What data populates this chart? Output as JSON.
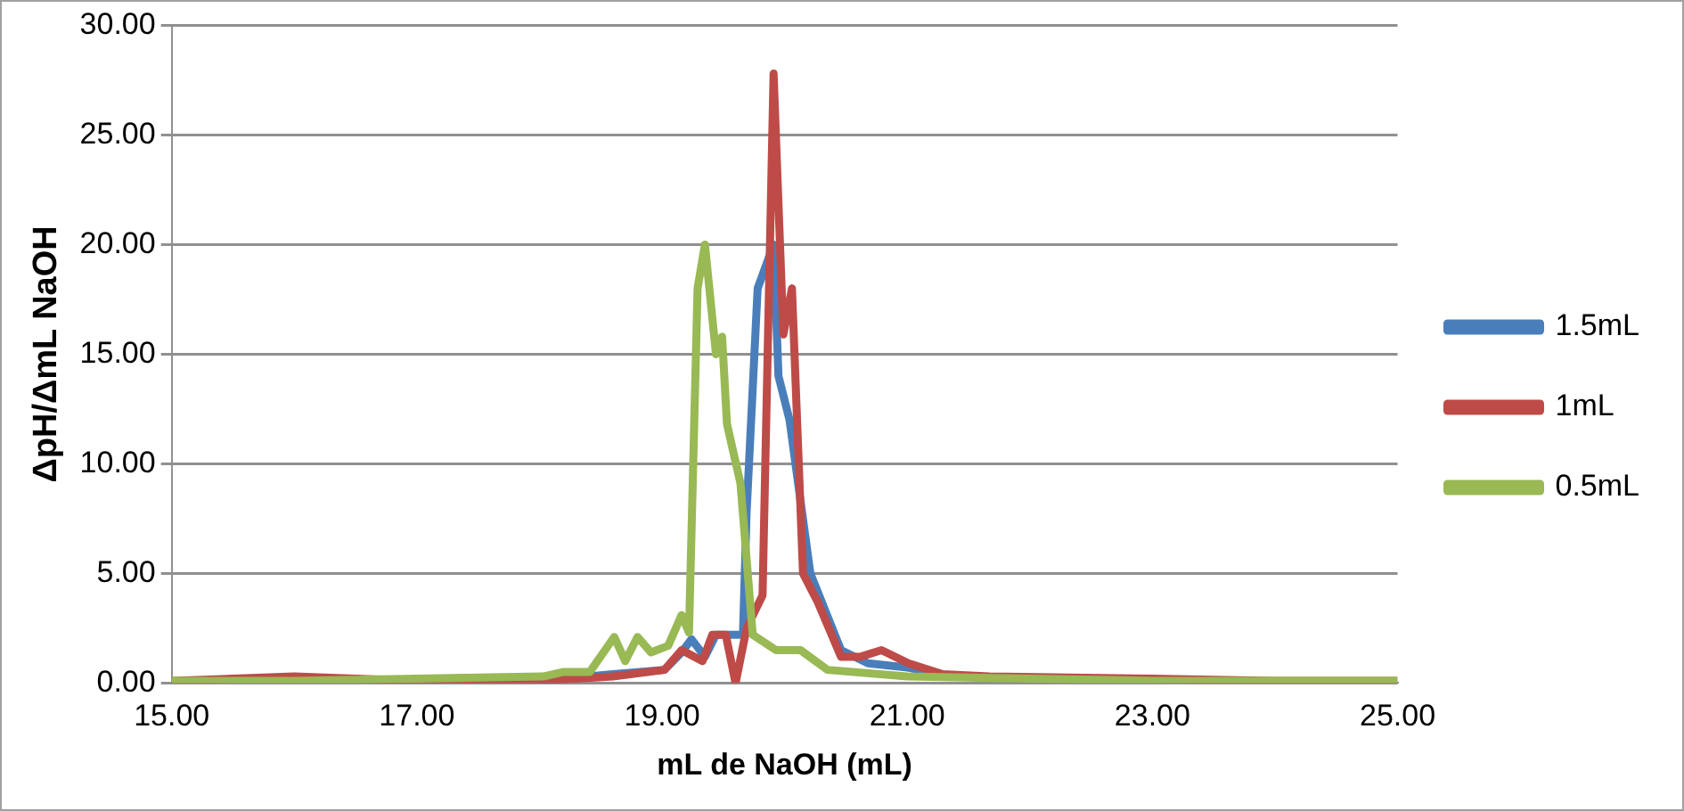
{
  "chart_data": {
    "type": "line",
    "xlabel": "mL de NaOH (mL)",
    "ylabel": "ΔpH/ΔmL NaOH",
    "xlim": [
      15,
      25
    ],
    "xticks": [
      {
        "value": 15,
        "label": "15.00"
      },
      {
        "value": 17,
        "label": "17.00"
      },
      {
        "value": 19,
        "label": "19.00"
      },
      {
        "value": 21,
        "label": "21.00"
      },
      {
        "value": 23,
        "label": "23.00"
      },
      {
        "value": 25,
        "label": "25.00"
      }
    ],
    "ylim": [
      0,
      30
    ],
    "yticks": [
      {
        "value": 0,
        "label": "0.00"
      },
      {
        "value": 5,
        "label": "5.00"
      },
      {
        "value": 10,
        "label": "10.00"
      },
      {
        "value": 15,
        "label": "15.00"
      },
      {
        "value": 20,
        "label": "20.00"
      },
      {
        "value": 25,
        "label": "25.00"
      },
      {
        "value": 30,
        "label": "30.00"
      }
    ],
    "grid": "y",
    "legend": "right",
    "marker": "none",
    "line_style": "solid",
    "series": [
      {
        "name": "1.5mL",
        "color": "#4a7ebb",
        "x": [
          18,
          18.6,
          19.02,
          19.16,
          19.24,
          19.35,
          19.44,
          19.57,
          19.66,
          19.69,
          19.78,
          19.91,
          19.95,
          20.04,
          20.21,
          20.46,
          20.68,
          21.01,
          21.34,
          22
        ],
        "values": [
          0.1,
          0.4,
          0.6,
          1.4,
          2.0,
          1.2,
          2.2,
          2.2,
          2.2,
          7.8,
          18,
          20,
          14,
          12,
          5,
          1.5,
          0.9,
          0.7,
          0.3,
          0.2
        ]
      },
      {
        "name": "1mL",
        "color": "#be4b48",
        "x": [
          15,
          16,
          17,
          18,
          18.6,
          19.02,
          19.16,
          19.33,
          19.41,
          19.52,
          19.6,
          19.69,
          19.82,
          19.91,
          19.99,
          20.06,
          20.15,
          20.27,
          20.46,
          20.62,
          20.79,
          21.01,
          21.29,
          21.67,
          23,
          24,
          25
        ],
        "values": [
          0.1,
          0.3,
          0.1,
          0.1,
          0.3,
          0.6,
          1.5,
          1.0,
          2.2,
          2.2,
          0,
          2.5,
          4.0,
          27.8,
          15.9,
          18,
          5.0,
          3.7,
          1.2,
          1.2,
          1.5,
          0.9,
          0.4,
          0.3,
          0.2,
          0.1,
          0.1
        ]
      },
      {
        "name": "0.5mL",
        "color": "#98b954",
        "x": [
          15,
          16,
          17,
          18.03,
          18.19,
          18.41,
          18.61,
          18.7,
          18.8,
          18.91,
          19.05,
          19.16,
          19.22,
          19.29,
          19.35,
          19.44,
          19.49,
          19.53,
          19.64,
          19.74,
          19.93,
          20.13,
          20.35,
          21.0,
          22,
          23,
          24,
          25
        ],
        "values": [
          0.1,
          0.1,
          0.2,
          0.3,
          0.5,
          0.5,
          2.1,
          1.0,
          2.1,
          1.4,
          1.7,
          3.1,
          2.3,
          18,
          20,
          15,
          15.8,
          11.8,
          9.1,
          2.2,
          1.5,
          1.5,
          0.6,
          0.3,
          0.2,
          0.1,
          0.1,
          0.1
        ]
      }
    ]
  }
}
